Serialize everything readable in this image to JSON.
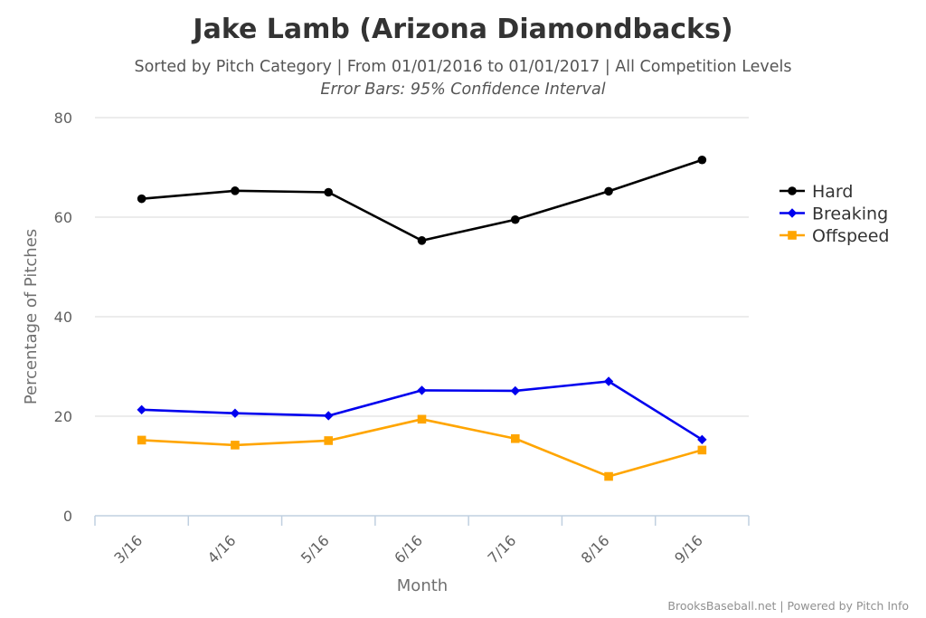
{
  "chart_data": {
    "type": "line",
    "title": "Jake Lamb (Arizona Diamondbacks)",
    "subtitle": "Sorted by Pitch Category | From 01/01/2016 to 01/01/2017 | All Competition Levels",
    "subtitle2": "Error Bars: 95% Confidence Interval",
    "xlabel": "Month",
    "ylabel": "Percentage of Pitches",
    "categories": [
      "3/16",
      "4/16",
      "5/16",
      "6/16",
      "7/16",
      "8/16",
      "9/16"
    ],
    "ylim": [
      0,
      80
    ],
    "yticks": [
      "0",
      "20",
      "40",
      "60",
      "80"
    ],
    "grid": true,
    "legend_position": "right",
    "series": [
      {
        "name": "Hard",
        "color": "#000000",
        "marker": "circle",
        "values": [
          63.7,
          65.3,
          65.0,
          55.3,
          59.5,
          65.2,
          71.5
        ]
      },
      {
        "name": "Breaking",
        "color": "#0000ee",
        "marker": "diamond",
        "values": [
          21.3,
          20.6,
          20.1,
          25.2,
          25.1,
          27.0,
          15.3
        ]
      },
      {
        "name": "Offspeed",
        "color": "#ffa500",
        "marker": "square",
        "values": [
          15.2,
          14.2,
          15.1,
          19.4,
          15.5,
          7.9,
          13.2
        ]
      }
    ],
    "credits": "BrooksBaseball.net | Powered by Pitch Info"
  }
}
